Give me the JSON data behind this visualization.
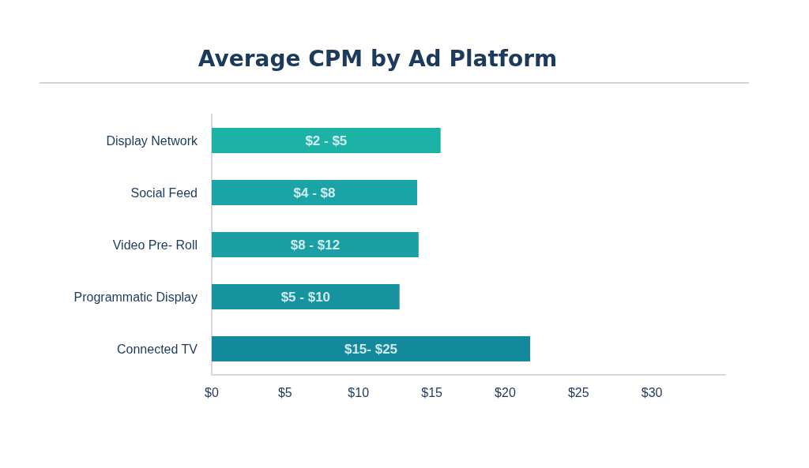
{
  "chart_data": {
    "type": "bar",
    "orientation": "horizontal",
    "title": "Average CPM by Ad Platform",
    "categories": [
      "Display Network",
      "Social Feed",
      "Video Pre- Roll",
      "Programmatic Display",
      "Connected TV"
    ],
    "values": [
      15.6,
      14.0,
      14.1,
      12.8,
      21.7
    ],
    "colors": [
      "#1cb2a6",
      "#1aa4a6",
      "#199fa4",
      "#16939f",
      "#138a9c"
    ],
    "annotations": [
      "$2 - $5",
      "$4 - $8",
      "$8 - $12",
      "$5 - $10",
      "$15- $25"
    ],
    "xlim": [
      0,
      35
    ],
    "xticks": [
      {
        "value": 0,
        "label": "$0"
      },
      {
        "value": 5,
        "label": "$5"
      },
      {
        "value": 10,
        "label": "$10"
      },
      {
        "value": 15,
        "label": "$15"
      },
      {
        "value": 20,
        "label": "$20"
      },
      {
        "value": 25,
        "label": "$25"
      },
      {
        "value": 30,
        "label": "$30"
      }
    ],
    "grid": false
  }
}
